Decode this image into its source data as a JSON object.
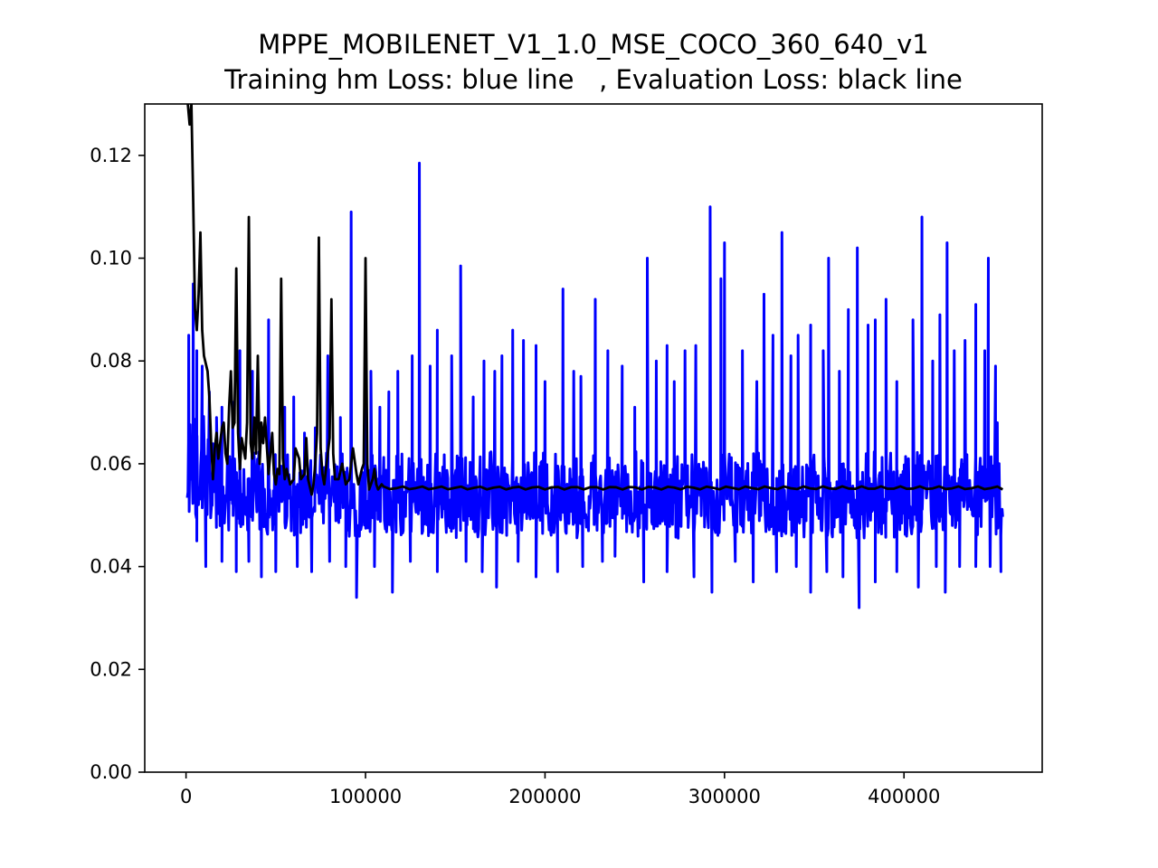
{
  "chart_data": {
    "type": "line",
    "title": "MPPE_MOBILENET_V1_1.0_MSE_COCO_360_640_v1",
    "subtitle": "Training hm Loss: blue line   , Evaluation Loss: black line",
    "xlabel": "",
    "ylabel": "",
    "xlim": [
      -23000,
      477000
    ],
    "ylim": [
      0.0,
      0.13
    ],
    "grid": false,
    "x_ticks": [
      0,
      100000,
      200000,
      300000,
      400000
    ],
    "x_tick_labels": [
      "0",
      "100000",
      "200000",
      "300000",
      "400000"
    ],
    "y_ticks": [
      0.0,
      0.02,
      0.04,
      0.06,
      0.08,
      0.1,
      0.12
    ],
    "y_tick_labels": [
      "0.00",
      "0.02",
      "0.04",
      "0.06",
      "0.08",
      "0.10",
      "0.12"
    ],
    "series": [
      {
        "color": "#0000ff",
        "x_start": 0,
        "x_end": 455000,
        "noise_note": "dense oscillation between roughly 0.045 and 0.068",
        "baseline": 0.052,
        "peaks": [
          [
            1500,
            0.085
          ],
          [
            4000,
            0.095
          ],
          [
            6000,
            0.082
          ],
          [
            9000,
            0.079
          ],
          [
            13000,
            0.074
          ],
          [
            17000,
            0.069
          ],
          [
            20000,
            0.071
          ],
          [
            26000,
            0.072
          ],
          [
            30000,
            0.082
          ],
          [
            37000,
            0.078
          ],
          [
            46000,
            0.088
          ],
          [
            55000,
            0.071
          ],
          [
            60000,
            0.073
          ],
          [
            66000,
            0.066
          ],
          [
            72000,
            0.067
          ],
          [
            79000,
            0.081
          ],
          [
            86000,
            0.069
          ],
          [
            92000,
            0.109
          ],
          [
            100000,
            0.077
          ],
          [
            103000,
            0.078
          ],
          [
            108000,
            0.071
          ],
          [
            113000,
            0.074
          ],
          [
            118000,
            0.078
          ],
          [
            126000,
            0.081
          ],
          [
            130000,
            0.1185
          ],
          [
            136000,
            0.079
          ],
          [
            140000,
            0.086
          ],
          [
            148000,
            0.081
          ],
          [
            153000,
            0.0985
          ],
          [
            160000,
            0.073
          ],
          [
            166000,
            0.08
          ],
          [
            172000,
            0.078
          ],
          [
            176000,
            0.081
          ],
          [
            182000,
            0.086
          ],
          [
            188000,
            0.084
          ],
          [
            195000,
            0.083
          ],
          [
            200000,
            0.076
          ],
          [
            210000,
            0.094
          ],
          [
            216000,
            0.078
          ],
          [
            220000,
            0.077
          ],
          [
            228000,
            0.092
          ],
          [
            235000,
            0.082
          ],
          [
            243000,
            0.079
          ],
          [
            250000,
            0.071
          ],
          [
            257000,
            0.1
          ],
          [
            262000,
            0.08
          ],
          [
            268000,
            0.083
          ],
          [
            272000,
            0.076
          ],
          [
            278000,
            0.082
          ],
          [
            284000,
            0.083
          ],
          [
            292000,
            0.11
          ],
          [
            298000,
            0.096
          ],
          [
            300000,
            0.103
          ],
          [
            310000,
            0.082
          ],
          [
            318000,
            0.076
          ],
          [
            322000,
            0.093
          ],
          [
            327000,
            0.085
          ],
          [
            332000,
            0.105
          ],
          [
            337000,
            0.081
          ],
          [
            341000,
            0.085
          ],
          [
            348000,
            0.087
          ],
          [
            355000,
            0.082
          ],
          [
            358000,
            0.1
          ],
          [
            364000,
            0.078
          ],
          [
            369000,
            0.09
          ],
          [
            374000,
            0.102
          ],
          [
            380000,
            0.087
          ],
          [
            384000,
            0.088
          ],
          [
            390000,
            0.092
          ],
          [
            396000,
            0.076
          ],
          [
            405000,
            0.088
          ],
          [
            410000,
            0.108
          ],
          [
            416000,
            0.08
          ],
          [
            420000,
            0.089
          ],
          [
            424000,
            0.103
          ],
          [
            428000,
            0.082
          ],
          [
            434000,
            0.084
          ],
          [
            440000,
            0.091
          ],
          [
            445000,
            0.082
          ],
          [
            447000,
            0.1
          ],
          [
            451000,
            0.079
          ]
        ],
        "troughs": [
          [
            3000,
            0.057
          ],
          [
            6000,
            0.045
          ],
          [
            11000,
            0.04
          ],
          [
            20000,
            0.041
          ],
          [
            28000,
            0.039
          ],
          [
            35000,
            0.041
          ],
          [
            42000,
            0.038
          ],
          [
            50000,
            0.039
          ],
          [
            62000,
            0.04
          ],
          [
            70000,
            0.039
          ],
          [
            80000,
            0.041
          ],
          [
            89000,
            0.04
          ],
          [
            95000,
            0.034
          ],
          [
            105000,
            0.04
          ],
          [
            115000,
            0.035
          ],
          [
            125000,
            0.041
          ],
          [
            140000,
            0.039
          ],
          [
            156000,
            0.041
          ],
          [
            165000,
            0.039
          ],
          [
            173000,
            0.036
          ],
          [
            185000,
            0.041
          ],
          [
            195000,
            0.038
          ],
          [
            207000,
            0.039
          ],
          [
            221000,
            0.04
          ],
          [
            232000,
            0.041
          ],
          [
            239000,
            0.042
          ],
          [
            255000,
            0.037
          ],
          [
            268000,
            0.039
          ],
          [
            283000,
            0.038
          ],
          [
            293000,
            0.035
          ],
          [
            306000,
            0.041
          ],
          [
            316000,
            0.037
          ],
          [
            329000,
            0.039
          ],
          [
            340000,
            0.04
          ],
          [
            348000,
            0.035
          ],
          [
            357000,
            0.039
          ],
          [
            366000,
            0.038
          ],
          [
            375000,
            0.032
          ],
          [
            384000,
            0.037
          ],
          [
            396000,
            0.039
          ],
          [
            408000,
            0.036
          ],
          [
            418000,
            0.04
          ],
          [
            423000,
            0.035
          ],
          [
            431000,
            0.04
          ],
          [
            440000,
            0.04
          ],
          [
            448000,
            0.04
          ],
          [
            454000,
            0.039
          ]
        ],
        "end_points": [
          [
            452000,
            0.068
          ],
          [
            454000,
            0.046
          ]
        ]
      },
      {
        "color": "#000000",
        "points": [
          [
            1000,
            0.13
          ],
          [
            2000,
            0.126
          ],
          [
            3000,
            0.13
          ],
          [
            4000,
            0.111
          ],
          [
            5000,
            0.09
          ],
          [
            6000,
            0.086
          ],
          [
            7000,
            0.093
          ],
          [
            8000,
            0.105
          ],
          [
            9000,
            0.086
          ],
          [
            10000,
            0.081
          ],
          [
            12000,
            0.078
          ],
          [
            13000,
            0.073
          ],
          [
            14000,
            0.064
          ],
          [
            15000,
            0.057
          ],
          [
            16000,
            0.063
          ],
          [
            17000,
            0.066
          ],
          [
            18000,
            0.061
          ],
          [
            20000,
            0.067
          ],
          [
            21000,
            0.068
          ],
          [
            22000,
            0.062
          ],
          [
            23000,
            0.06
          ],
          [
            24000,
            0.071
          ],
          [
            25000,
            0.078
          ],
          [
            26000,
            0.067
          ],
          [
            27000,
            0.068
          ],
          [
            28000,
            0.098
          ],
          [
            29000,
            0.066
          ],
          [
            30000,
            0.059
          ],
          [
            31000,
            0.065
          ],
          [
            32000,
            0.063
          ],
          [
            33000,
            0.061
          ],
          [
            34000,
            0.068
          ],
          [
            35000,
            0.108
          ],
          [
            36000,
            0.064
          ],
          [
            37000,
            0.061
          ],
          [
            38000,
            0.069
          ],
          [
            39000,
            0.062
          ],
          [
            40000,
            0.081
          ],
          [
            41000,
            0.06
          ],
          [
            42000,
            0.068
          ],
          [
            43000,
            0.064
          ],
          [
            44000,
            0.069
          ],
          [
            46000,
            0.058
          ],
          [
            48000,
            0.066
          ],
          [
            49000,
            0.058
          ],
          [
            50000,
            0.056
          ],
          [
            51000,
            0.059
          ],
          [
            52000,
            0.058
          ],
          [
            53000,
            0.096
          ],
          [
            54000,
            0.061
          ],
          [
            55000,
            0.057
          ],
          [
            56000,
            0.059
          ],
          [
            58000,
            0.056
          ],
          [
            60000,
            0.057
          ],
          [
            61000,
            0.063
          ],
          [
            63000,
            0.061
          ],
          [
            64000,
            0.057
          ],
          [
            66000,
            0.058
          ],
          [
            67000,
            0.065
          ],
          [
            68000,
            0.057
          ],
          [
            70000,
            0.054
          ],
          [
            71000,
            0.056
          ],
          [
            72000,
            0.06
          ],
          [
            73000,
            0.066
          ],
          [
            74000,
            0.104
          ],
          [
            75000,
            0.063
          ],
          [
            76000,
            0.058
          ],
          [
            77000,
            0.056
          ],
          [
            78000,
            0.059
          ],
          [
            80000,
            0.065
          ],
          [
            81000,
            0.092
          ],
          [
            82000,
            0.062
          ],
          [
            83000,
            0.057
          ],
          [
            85000,
            0.057
          ],
          [
            87000,
            0.06
          ],
          [
            89000,
            0.056
          ],
          [
            91000,
            0.057
          ],
          [
            93000,
            0.063
          ],
          [
            95000,
            0.058
          ],
          [
            96000,
            0.056
          ],
          [
            98000,
            0.059
          ],
          [
            99000,
            0.06
          ],
          [
            100000,
            0.1
          ],
          [
            101000,
            0.06
          ],
          [
            102000,
            0.055
          ],
          [
            104000,
            0.057
          ],
          [
            105000,
            0.059
          ],
          [
            106000,
            0.056
          ],
          [
            107000,
            0.055
          ],
          [
            109000,
            0.056
          ],
          [
            455000,
            0.055
          ]
        ]
      }
    ]
  }
}
